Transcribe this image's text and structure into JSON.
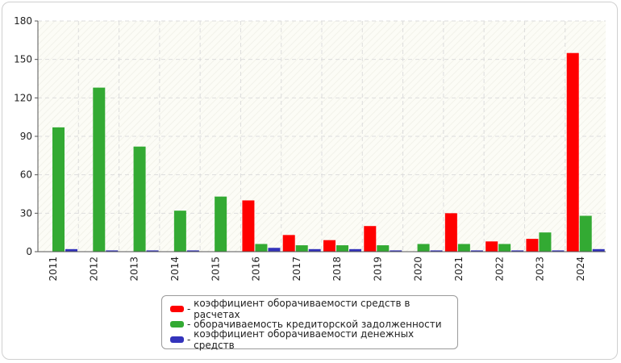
{
  "chart_data": {
    "type": "bar",
    "categories": [
      "2011",
      "2012",
      "2013",
      "2014",
      "2015",
      "2016",
      "2017",
      "2018",
      "2019",
      "2020",
      "2021",
      "2022",
      "2023",
      "2024"
    ],
    "series": [
      {
        "name": "коэффициент оборачиваемости средств в расчетах",
        "color": "#ff0000",
        "values": [
          0,
          0,
          0,
          0,
          0,
          40,
          13,
          9,
          20,
          0,
          30,
          8,
          10,
          155
        ]
      },
      {
        "name": "оборачиваемость кредиторской задолженности",
        "color": "#33aa33",
        "values": [
          97,
          128,
          82,
          32,
          43,
          6,
          5,
          5,
          5,
          6,
          6,
          6,
          15,
          28
        ]
      },
      {
        "name": "коэффициент оборачиваемости денежных средств",
        "color": "#3333bb",
        "values": [
          2,
          1,
          1,
          1,
          0,
          3,
          2,
          2,
          1,
          1,
          1,
          1,
          1,
          2
        ]
      }
    ],
    "ylim": [
      0,
      180
    ],
    "yticks": [
      "0",
      "30",
      "60",
      "90",
      "120",
      "150",
      "180"
    ],
    "title": "",
    "xlabel": "",
    "ylabel": "",
    "grid": true,
    "legend_position": "bottom-center"
  },
  "legend": {
    "items": [
      {
        "marker": "- ",
        "label": "коэффициент оборачиваемости средств в расчетах",
        "color": "#ff0000"
      },
      {
        "marker": "- ",
        "label": "оборачиваемость кредиторской задолженности",
        "color": "#33aa33"
      },
      {
        "marker": "- ",
        "label": "коэффициент оборачиваемости денежных средств",
        "color": "#3333bb"
      }
    ]
  }
}
